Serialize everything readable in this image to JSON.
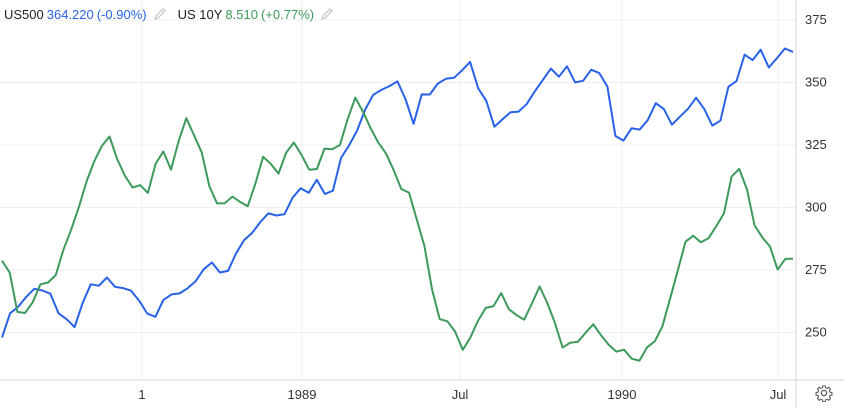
{
  "legend": [
    {
      "symbol": "US500",
      "value": "364.220",
      "change": "(-0.90%)",
      "color": "#2962e8",
      "icon": "pencil-icon"
    },
    {
      "symbol": "US 10Y",
      "value": "8.510",
      "change": "(+0.77%)",
      "color": "#3d9a5c",
      "icon": "pencil-icon"
    }
  ],
  "settings_icon": "gear-icon",
  "chart_data": {
    "type": "line",
    "title": "",
    "xlabel": "",
    "ylabel": "",
    "x_ticks": [
      "1",
      "1989",
      "Jul",
      "1990",
      "Jul"
    ],
    "y_ticks": [
      250,
      275,
      300,
      325,
      350,
      375
    ],
    "ylim": [
      231,
      383
    ],
    "y_axis_side": "right",
    "grid": true,
    "series": [
      {
        "name": "US500",
        "color": "#2962e8",
        "values": [
          250,
          256,
          262,
          264,
          268,
          267,
          265,
          259,
          256,
          252,
          260,
          268,
          270,
          270,
          267,
          268,
          265,
          263,
          257,
          257,
          262,
          265,
          265,
          268,
          272,
          276,
          278,
          276,
          276,
          282,
          285,
          289,
          295,
          298,
          298,
          297,
          302,
          306,
          306,
          310,
          305,
          305,
          320,
          326,
          330,
          338,
          346,
          347,
          350,
          352,
          344,
          335,
          344,
          345,
          350,
          350,
          352,
          356,
          359,
          349,
          344,
          334,
          334,
          340,
          340,
          343,
          346,
          352,
          356,
          353,
          357,
          350,
          352,
          357,
          355,
          348,
          330,
          326,
          333,
          333,
          334,
          342,
          341,
          334,
          338,
          340,
          344,
          340,
          333,
          333,
          347,
          352,
          361,
          358,
          362,
          355,
          358,
          365,
          364
        ]
      },
      {
        "name": "US 10Y",
        "color": "#3d9a5c",
        "values": [
          280,
          273,
          258,
          258,
          263,
          268,
          269,
          273,
          283,
          291,
          302,
          310,
          318,
          325,
          327,
          320,
          313,
          309,
          307,
          305,
          316,
          321,
          317,
          326,
          334,
          330,
          321,
          310,
          300,
          303,
          305,
          302,
          301,
          310,
          320,
          319,
          313,
          320,
          327,
          322,
          314,
          314,
          323,
          325,
          325,
          334,
          343,
          340,
          332,
          324,
          320,
          315,
          308,
          306,
          297,
          283,
          268,
          256,
          254,
          250,
          243,
          249,
          253,
          258,
          262,
          265,
          261,
          255,
          255,
          262,
          268,
          262,
          254,
          246,
          245,
          247,
          251,
          252,
          247,
          246,
          244,
          243,
          240,
          238,
          243,
          246,
          252,
          265,
          275,
          286,
          290,
          287,
          286,
          292,
          297,
          311,
          316,
          306,
          293,
          289,
          284,
          277,
          280,
          278
        ]
      }
    ]
  }
}
